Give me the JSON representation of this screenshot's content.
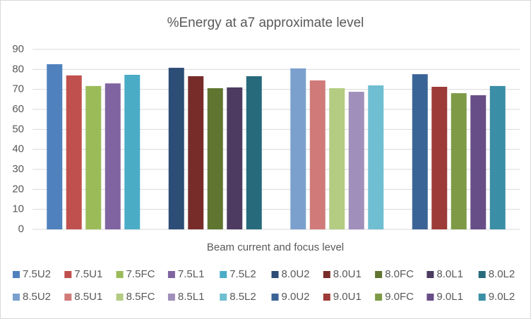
{
  "chart_data": {
    "type": "bar",
    "title": "%Energy at a7 approximate level",
    "x_label": "Beam current and focus level",
    "categories": [
      null,
      null,
      null,
      null
    ],
    "ylim": [
      0,
      90
    ],
    "yticks": [
      0,
      10,
      20,
      30,
      40,
      50,
      60,
      70,
      80,
      90
    ],
    "grid": true,
    "series": [
      {
        "name": "7.5U2",
        "color": "#4f81bd",
        "values": [
          82.6,
          null,
          null,
          null
        ]
      },
      {
        "name": "7.5U1",
        "color": "#c0504d",
        "values": [
          77,
          null,
          null,
          null
        ]
      },
      {
        "name": "7.5FC",
        "color": "#9bbb59",
        "values": [
          71.7,
          null,
          null,
          null
        ]
      },
      {
        "name": "7.5L1",
        "color": "#8064a2",
        "values": [
          73,
          null,
          null,
          null
        ]
      },
      {
        "name": "7.5L2",
        "color": "#4bacc6",
        "values": [
          77.3,
          null,
          null,
          null
        ]
      },
      {
        "name": "8.0U2",
        "color": "#2c4d75",
        "values": [
          null,
          80.8,
          null,
          null
        ]
      },
      {
        "name": "8.0U1",
        "color": "#772c2a",
        "values": [
          null,
          76.6,
          null,
          null
        ]
      },
      {
        "name": "8.0FC",
        "color": "#5f7530",
        "values": [
          null,
          70.6,
          null,
          null
        ]
      },
      {
        "name": "8.0L1",
        "color": "#4d3b62",
        "values": [
          null,
          71,
          null,
          null
        ]
      },
      {
        "name": "8.0L2",
        "color": "#276a7c",
        "values": [
          null,
          76.6,
          null,
          null
        ]
      },
      {
        "name": "8.5U2",
        "color": "#7ba0cd",
        "values": [
          null,
          null,
          80.5,
          null
        ]
      },
      {
        "name": "8.5U1",
        "color": "#d07b79",
        "values": [
          null,
          null,
          74.5,
          null
        ]
      },
      {
        "name": "8.5FC",
        "color": "#b3cc82",
        "values": [
          null,
          null,
          70.6,
          null
        ]
      },
      {
        "name": "8.5L1",
        "color": "#a08fba",
        "values": [
          null,
          null,
          68.8,
          null
        ]
      },
      {
        "name": "8.5L2",
        "color": "#6fbed1",
        "values": [
          null,
          null,
          72,
          null
        ]
      },
      {
        "name": "9.0U2",
        "color": "#3a6496",
        "values": [
          null,
          null,
          null,
          77.6
        ]
      },
      {
        "name": "9.0U1",
        "color": "#9c3b38",
        "values": [
          null,
          null,
          null,
          71.3
        ]
      },
      {
        "name": "9.0FC",
        "color": "#7e9a47",
        "values": [
          null,
          null,
          null,
          68.1
        ]
      },
      {
        "name": "9.0L1",
        "color": "#684e86",
        "values": [
          null,
          null,
          null,
          67.1
        ]
      },
      {
        "name": "9.0L2",
        "color": "#3a8ea6",
        "values": [
          null,
          null,
          null,
          71.7
        ]
      }
    ]
  }
}
